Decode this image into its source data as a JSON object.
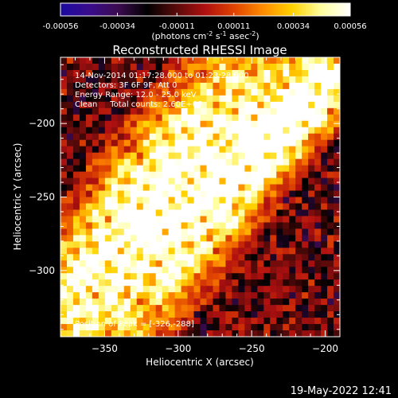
{
  "colorbar": {
    "ticks": [
      "-0.00056",
      "-0.00034",
      "-0.00011",
      "0.00011",
      "0.00034",
      "0.00056"
    ],
    "tick_values": [
      -0.00056,
      -0.00034,
      -0.00011,
      0.00011,
      0.00034,
      0.00056
    ],
    "range": [
      -0.00056,
      0.00056
    ],
    "units_main": "(photons cm",
    "units_exp1": "-2",
    "units_mid": " s",
    "units_exp2": "-1",
    "units_tail": " asec",
    "units_exp3": "-2",
    "units_close": ")",
    "colors": [
      "#1a0aa0",
      "#3a0c8c",
      "#3b0b4e",
      "#000000",
      "#5a0a0a",
      "#b01010",
      "#e04400",
      "#ff8c00",
      "#ffd200",
      "#ffffa0",
      "#ffffff"
    ]
  },
  "chart_data": {
    "type": "heatmap",
    "title": "Reconstructed RHESSI Image",
    "xlabel": "Heliocentric X (arcsec)",
    "ylabel": "Heliocentric Y (arcsec)",
    "xlim": [
      -380,
      -190
    ],
    "ylim": [
      -345,
      -155
    ],
    "x_ticks": [
      -350,
      -300,
      -250,
      -200
    ],
    "y_ticks": [
      -200,
      -250,
      -300
    ],
    "x_tick_labels": [
      "−350",
      "−300",
      "−250",
      "−200"
    ],
    "y_tick_labels": [
      "−200",
      "−250",
      "−300"
    ],
    "annotations": [
      "14-Nov-2014 01:17:28.000 to 01:23:28.000",
      "Detectors: 3F 6F 9F, Att 0",
      "Energy Range: 12.0 - 25.0 keV",
      "Clean     Total counts: 2.60E+03"
    ],
    "peak_label": "Position of Peak = [-326,-288]",
    "peak_position": [
      -326,
      -288
    ],
    "grid": false
  },
  "footer": {
    "timestamp": "19-May-2022 12:41"
  }
}
